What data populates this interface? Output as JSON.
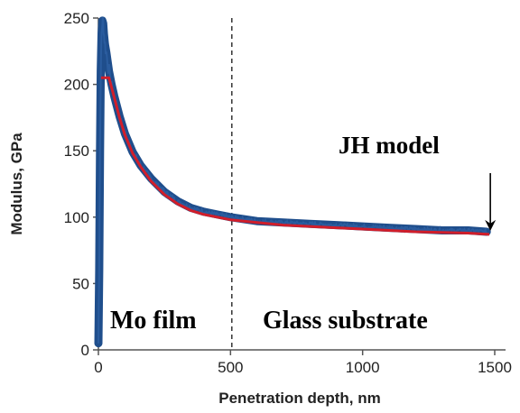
{
  "chart_data": {
    "type": "line",
    "title": "",
    "xlabel": "Penetration  depth,  nm",
    "ylabel": "Modulus,  GPa",
    "xlim": [
      0,
      1500
    ],
    "ylim": [
      0,
      250
    ],
    "x_ticks": [
      "0",
      "500",
      "1000",
      "1500"
    ],
    "y_ticks": [
      "0",
      "50",
      "100",
      "150",
      "200",
      "250"
    ],
    "grid": false,
    "series": [
      {
        "name": "",
        "color": "#1f4e8c",
        "role": "measured",
        "points": [
          [
            0,
            5
          ],
          [
            3,
            60
          ],
          [
            6,
            150
          ],
          [
            9,
            210
          ],
          [
            12,
            238
          ],
          [
            15,
            248
          ],
          [
            18,
            246
          ],
          [
            21,
            238
          ],
          [
            25,
            230
          ],
          [
            30,
            224
          ],
          [
            40,
            210
          ],
          [
            50,
            200
          ],
          [
            60,
            191
          ],
          [
            80,
            176
          ],
          [
            100,
            163
          ],
          [
            130,
            149
          ],
          [
            160,
            139
          ],
          [
            200,
            129
          ],
          [
            250,
            119
          ],
          [
            300,
            112
          ],
          [
            350,
            107
          ],
          [
            400,
            104
          ],
          [
            450,
            102
          ],
          [
            500,
            100
          ],
          [
            600,
            97
          ],
          [
            700,
            96
          ],
          [
            800,
            95
          ],
          [
            900,
            94
          ],
          [
            1000,
            93
          ],
          [
            1100,
            92
          ],
          [
            1200,
            91
          ],
          [
            1300,
            90
          ],
          [
            1400,
            90
          ],
          [
            1470,
            89
          ]
        ]
      },
      {
        "name": "JH model",
        "color": "#d11e2a",
        "role": "model",
        "points": [
          [
            10,
            205
          ],
          [
            40,
            205
          ],
          [
            60,
            190
          ],
          [
            80,
            175
          ],
          [
            100,
            162
          ],
          [
            130,
            148
          ],
          [
            160,
            138
          ],
          [
            200,
            127
          ],
          [
            250,
            117
          ],
          [
            300,
            110
          ],
          [
            350,
            105
          ],
          [
            400,
            102
          ],
          [
            500,
            98
          ],
          [
            600,
            96
          ],
          [
            700,
            94
          ],
          [
            800,
            93
          ],
          [
            900,
            92
          ],
          [
            1000,
            91
          ],
          [
            1100,
            90
          ],
          [
            1200,
            89
          ],
          [
            1300,
            88.5
          ],
          [
            1400,
            88
          ],
          [
            1480,
            87
          ]
        ]
      }
    ],
    "vertical_line": {
      "x": 505,
      "style": "dashed"
    },
    "annotations": {
      "model_label": "JH model",
      "arrow_target": [
        1480,
        87
      ],
      "left_region": "Mo film",
      "right_region": "Glass substrate"
    }
  }
}
